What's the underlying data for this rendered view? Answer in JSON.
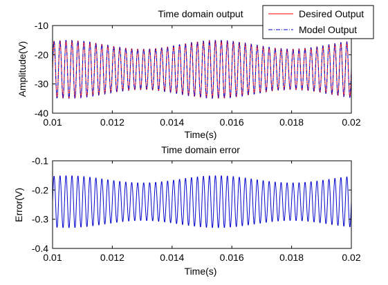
{
  "chart_data": [
    {
      "type": "line",
      "title": "Time domain output",
      "xlabel": "Time(s)",
      "ylabel": "Amplitude(V)",
      "xlim": [
        0.01,
        0.02
      ],
      "ylim": [
        -40,
        -10
      ],
      "xticks": [
        "0.01",
        "0.012",
        "0.014",
        "0.016",
        "0.018",
        "0.02"
      ],
      "yticks": [
        "-10",
        "-20",
        "-30",
        "-40"
      ],
      "legend_position": "top-right",
      "series": [
        {
          "name": "Desired Output",
          "color": "#ff0000",
          "style": "solid",
          "mean": -25,
          "amplitude_low": 7.0,
          "amplitude_high": 10.0,
          "frequency_hz": 5000,
          "envelope_frequency_hz": 200
        },
        {
          "name": "Model Output",
          "color": "#0000cc",
          "style": "dash-dot",
          "mean": -25,
          "amplitude_low": 7.0,
          "amplitude_high": 10.0,
          "frequency_hz": 5000,
          "envelope_frequency_hz": 200
        }
      ]
    },
    {
      "type": "line",
      "title": "Time domain error",
      "xlabel": "Time(s)",
      "ylabel": "Error(V)",
      "xlim": [
        0.01,
        0.02
      ],
      "ylim": [
        -0.4,
        -0.1
      ],
      "xticks": [
        "0.01",
        "0.012",
        "0.014",
        "0.016",
        "0.018",
        "0.02"
      ],
      "yticks": [
        "-0.1",
        "-0.2",
        "-0.3",
        "-0.4"
      ],
      "series": [
        {
          "name": "",
          "color": "#0000cc",
          "style": "solid",
          "mean": -0.24,
          "amplitude_low": 0.065,
          "amplitude_high": 0.09,
          "frequency_hz": 5000,
          "envelope_frequency_hz": 200
        }
      ]
    }
  ]
}
